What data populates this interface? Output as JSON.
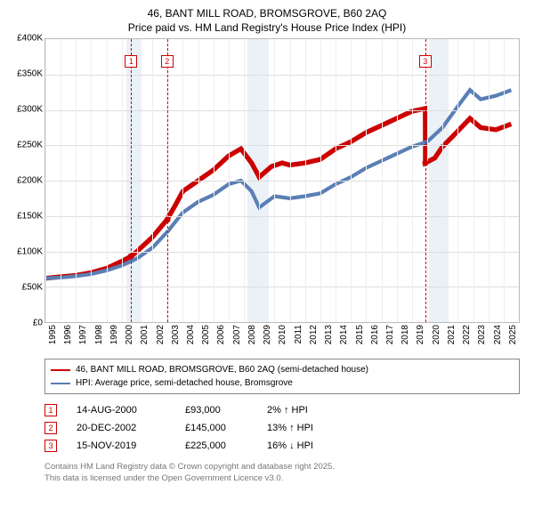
{
  "title_line1": "46, BANT MILL ROAD, BROMSGROVE, B60 2AQ",
  "title_line2": "Price paid vs. HM Land Registry's House Price Index (HPI)",
  "chart": {
    "type": "line",
    "background_color": "#ffffff",
    "grid_color": "#dddddd",
    "shade_color": "#d0e0ee",
    "x_start_year": 1995,
    "x_end_year": 2026,
    "x_ticks": [
      1995,
      1996,
      1997,
      1998,
      1999,
      2000,
      2001,
      2002,
      2003,
      2004,
      2005,
      2006,
      2007,
      2008,
      2009,
      2010,
      2011,
      2012,
      2013,
      2014,
      2015,
      2016,
      2017,
      2018,
      2019,
      2020,
      2021,
      2022,
      2023,
      2024,
      2025
    ],
    "ylim": [
      0,
      400000
    ],
    "ytick_step": 50000,
    "y_tick_labels": [
      "£0",
      "£50K",
      "£100K",
      "£150K",
      "£200K",
      "£250K",
      "£300K",
      "£350K",
      "£400K"
    ],
    "shaded_ranges": [
      {
        "from": 2000.3,
        "to": 2001.3
      },
      {
        "from": 2008.2,
        "to": 2009.6
      },
      {
        "from": 2020.1,
        "to": 2021.4
      }
    ],
    "markers": [
      {
        "n": "1",
        "x": 2000.62,
        "y": 93000
      },
      {
        "n": "2",
        "x": 2002.97,
        "y": 145000
      },
      {
        "n": "3",
        "x": 2019.87,
        "y": 225000
      }
    ],
    "series": [
      {
        "name": "46, BANT MILL ROAD, BROMSGROVE, B60 2AQ (semi-detached house)",
        "color": "#cc0000",
        "width": 1.8,
        "points": [
          [
            1995,
            62000
          ],
          [
            1996,
            64000
          ],
          [
            1997,
            66000
          ],
          [
            1998,
            70000
          ],
          [
            1999,
            76000
          ],
          [
            2000,
            86000
          ],
          [
            2000.62,
            93000
          ],
          [
            2001,
            100000
          ],
          [
            2002,
            120000
          ],
          [
            2002.97,
            145000
          ],
          [
            2003.5,
            165000
          ],
          [
            2004,
            185000
          ],
          [
            2005,
            200000
          ],
          [
            2006,
            215000
          ],
          [
            2007,
            235000
          ],
          [
            2007.8,
            245000
          ],
          [
            2008.5,
            225000
          ],
          [
            2009,
            205000
          ],
          [
            2009.8,
            220000
          ],
          [
            2010.5,
            225000
          ],
          [
            2011,
            222000
          ],
          [
            2012,
            225000
          ],
          [
            2013,
            230000
          ],
          [
            2014,
            245000
          ],
          [
            2015,
            255000
          ],
          [
            2016,
            268000
          ],
          [
            2017,
            278000
          ],
          [
            2018,
            288000
          ],
          [
            2019,
            298000
          ],
          [
            2019.87,
            302000
          ],
          [
            2019.88,
            225000
          ],
          [
            2020.5,
            232000
          ],
          [
            2021,
            248000
          ],
          [
            2022,
            270000
          ],
          [
            2022.8,
            288000
          ],
          [
            2023.5,
            275000
          ],
          [
            2024.5,
            272000
          ],
          [
            2025.5,
            280000
          ]
        ]
      },
      {
        "name": "HPI: Average price, semi-detached house, Bromsgrove",
        "color": "#5a7fb5",
        "width": 1.4,
        "points": [
          [
            1995,
            62000
          ],
          [
            1996,
            63000
          ],
          [
            1997,
            65000
          ],
          [
            1998,
            68000
          ],
          [
            1999,
            73000
          ],
          [
            2000,
            80000
          ],
          [
            2001,
            90000
          ],
          [
            2002,
            105000
          ],
          [
            2003,
            128000
          ],
          [
            2004,
            155000
          ],
          [
            2005,
            170000
          ],
          [
            2006,
            180000
          ],
          [
            2007,
            195000
          ],
          [
            2007.8,
            200000
          ],
          [
            2008.5,
            185000
          ],
          [
            2009,
            162000
          ],
          [
            2010,
            178000
          ],
          [
            2011,
            175000
          ],
          [
            2012,
            178000
          ],
          [
            2013,
            182000
          ],
          [
            2014,
            195000
          ],
          [
            2015,
            205000
          ],
          [
            2016,
            218000
          ],
          [
            2017,
            228000
          ],
          [
            2018,
            238000
          ],
          [
            2019,
            248000
          ],
          [
            2020,
            255000
          ],
          [
            2021,
            275000
          ],
          [
            2022,
            305000
          ],
          [
            2022.8,
            328000
          ],
          [
            2023.5,
            315000
          ],
          [
            2024.5,
            320000
          ],
          [
            2025.5,
            328000
          ]
        ]
      }
    ]
  },
  "legend": {
    "items": [
      {
        "color": "#cc0000",
        "label": "46, BANT MILL ROAD, BROMSGROVE, B60 2AQ (semi-detached house)"
      },
      {
        "color": "#5a7fb5",
        "label": "HPI: Average price, semi-detached house, Bromsgrove"
      }
    ]
  },
  "transactions": [
    {
      "n": "1",
      "date": "14-AUG-2000",
      "price": "£93,000",
      "delta": "2% ↑ HPI"
    },
    {
      "n": "2",
      "date": "20-DEC-2002",
      "price": "£145,000",
      "delta": "13% ↑ HPI"
    },
    {
      "n": "3",
      "date": "15-NOV-2019",
      "price": "£225,000",
      "delta": "16% ↓ HPI"
    }
  ],
  "footer_line1": "Contains HM Land Registry data © Crown copyright and database right 2025.",
  "footer_line2": "This data is licensed under the Open Government Licence v3.0."
}
